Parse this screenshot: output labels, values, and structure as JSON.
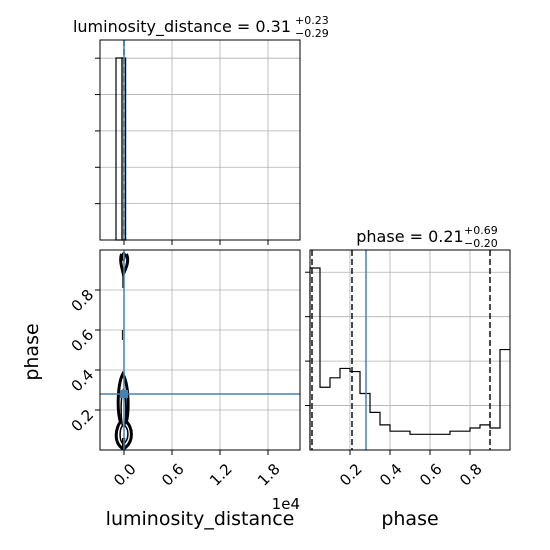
{
  "chart_data": [
    {
      "type": "histogram",
      "panel": "luminosity_distance marginal",
      "title_param": "luminosity_distance",
      "title_median": "0.31",
      "title_plus": "+0.23",
      "title_minus": "−0.29",
      "xlim": [
        -3000,
        22000
      ],
      "bins": [
        [
          -1000,
          -250,
          1.0
        ],
        [
          -250,
          200,
          1.0
        ]
      ],
      "quantiles": [
        0.02,
        0.31,
        0.54
      ],
      "truth": 0,
      "grid": true
    },
    {
      "type": "histogram",
      "panel": "phase marginal",
      "title_param": "phase",
      "title_median": "0.21",
      "title_plus": "+0.69",
      "title_minus": "−0.20",
      "xlim": [
        0.0,
        1.0
      ],
      "xticks": [
        "0.2",
        "0.4",
        "0.6",
        "0.8"
      ],
      "xlabel": "phase",
      "bin_edges": [
        0.0,
        0.05,
        0.1,
        0.15,
        0.2,
        0.25,
        0.3,
        0.35,
        0.4,
        0.45,
        0.5,
        0.55,
        0.6,
        0.65,
        0.7,
        0.75,
        0.8,
        0.85,
        0.9,
        0.95,
        1.0
      ],
      "counts": [
        0.58,
        0.2,
        0.23,
        0.26,
        0.25,
        0.18,
        0.12,
        0.08,
        0.06,
        0.06,
        0.05,
        0.05,
        0.05,
        0.05,
        0.06,
        0.06,
        0.07,
        0.08,
        0.07,
        0.32
      ],
      "quantiles": [
        0.01,
        0.21,
        0.9
      ],
      "truth": 0.28,
      "grid": true
    },
    {
      "type": "contour",
      "panel": "luminosity_distance vs phase",
      "xlim": [
        -3000,
        22000
      ],
      "ylim": [
        0.0,
        1.0
      ],
      "xticks": [
        "0.0",
        "0.6",
        "1.2",
        "1.8"
      ],
      "yticks": [
        "0.2",
        "0.4",
        "0.6",
        "0.8"
      ],
      "x_offset_label": "1e4",
      "xlabel": "luminosity_distance",
      "ylabel": "phase",
      "truth": {
        "x": 0,
        "y": 0.28
      },
      "grid": true
    }
  ]
}
